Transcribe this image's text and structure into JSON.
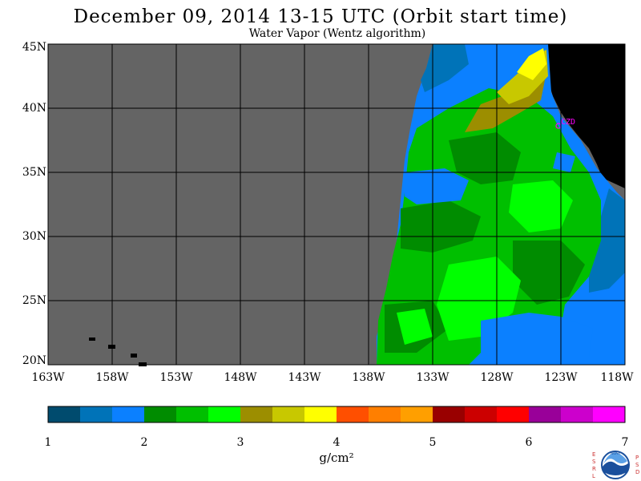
{
  "title": "December 09, 2014  13-15 UTC  (Orbit start time)",
  "subtitle": "Water Vapor (Wentz algorithm)",
  "station_label": "CZD",
  "lat_labels": [
    "45N",
    "40N",
    "35N",
    "30N",
    "25N",
    "20N"
  ],
  "lon_labels": [
    "163W",
    "158W",
    "153W",
    "148W",
    "143W",
    "138W",
    "133W",
    "128W",
    "123W",
    "118W"
  ],
  "colorbar": {
    "ticks": [
      "1",
      "2",
      "3",
      "4",
      "5",
      "6",
      "7"
    ],
    "units": "g/cm²",
    "colors": [
      "#004b6e",
      "#0073b8",
      "#0b80ff",
      "#008c00",
      "#00bf00",
      "#00ff00",
      "#9c8e00",
      "#c8c800",
      "#ffff00",
      "#ff4f00",
      "#ff7f00",
      "#ff9f00",
      "#990000",
      "#cc0000",
      "#ff0000",
      "#990099",
      "#cc00cc",
      "#ff00ff"
    ]
  },
  "map_colors": {
    "no_data": "#646464",
    "land": "#000000",
    "grid": "#000000"
  },
  "logo": {
    "left_letters": "ESRL",
    "right_letters": "PSD",
    "center": "NOAA"
  }
}
